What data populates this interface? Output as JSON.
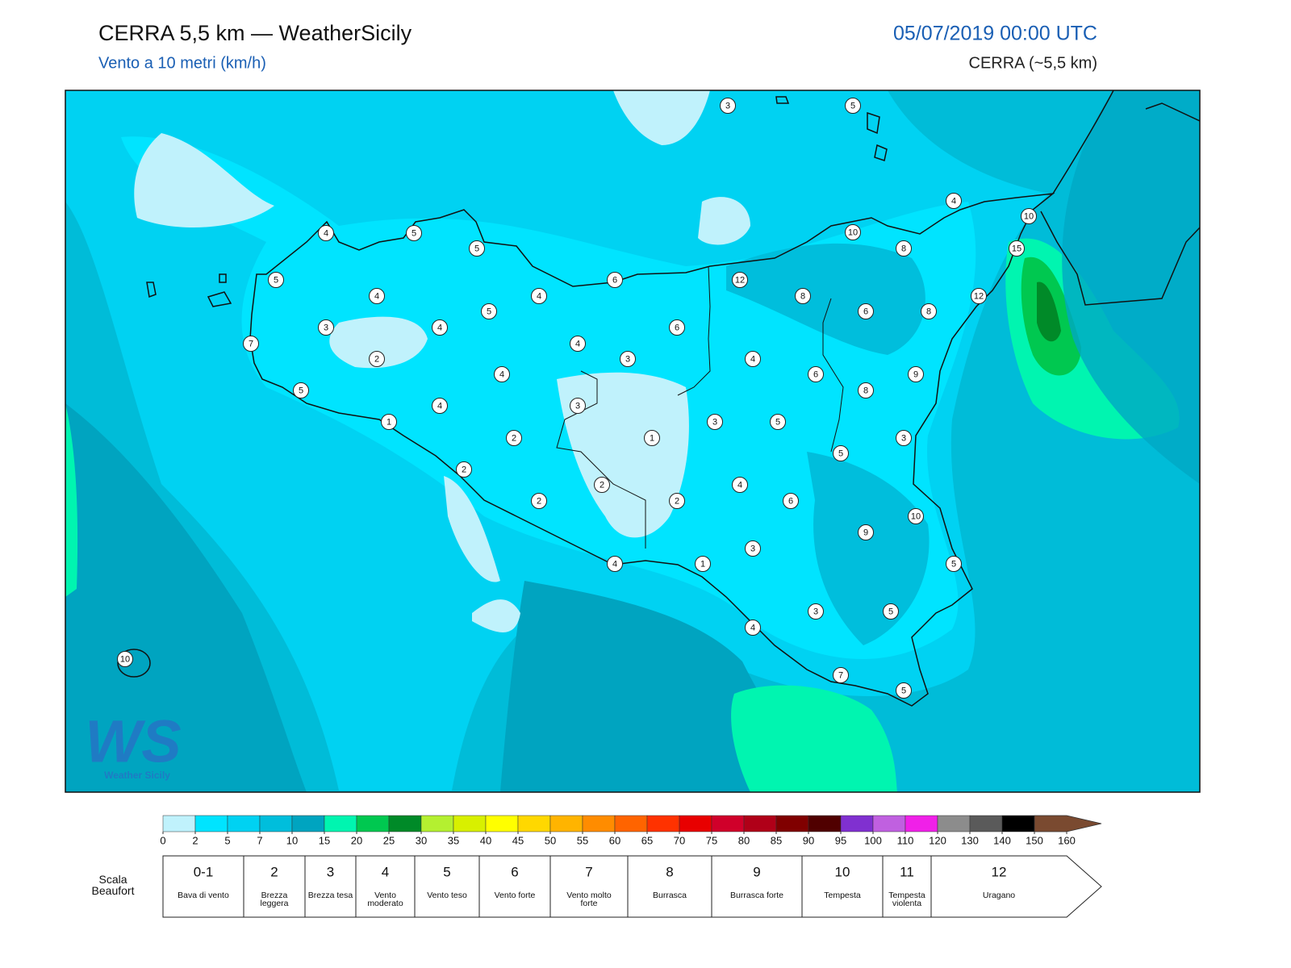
{
  "header": {
    "title": "CERRA 5,5 km — WeatherSicily",
    "subtitle": "Vento a 10 metri (km/h)",
    "datetime": "05/07/2019 00:00 UTC",
    "model": "CERRA (~5,5 km)"
  },
  "map": {
    "stations": [
      3,
      5,
      4,
      10,
      15,
      10,
      8,
      12,
      6,
      8,
      6,
      8,
      12,
      4,
      5,
      5,
      5,
      4,
      4,
      5,
      3,
      4,
      6,
      7,
      4,
      2,
      3,
      4,
      4,
      6,
      9,
      5,
      4,
      3,
      8,
      1,
      3,
      5,
      2,
      1,
      3,
      5,
      2,
      4,
      2,
      6,
      2,
      2,
      10,
      9,
      3,
      4,
      1,
      5,
      3,
      5,
      4,
      10,
      7,
      5
    ]
  },
  "logo": {
    "text": "WS",
    "name": "Weather Sicily"
  },
  "colorbar": {
    "ticks": [
      0,
      2,
      5,
      7,
      10,
      15,
      20,
      25,
      30,
      35,
      40,
      45,
      50,
      55,
      60,
      65,
      70,
      75,
      80,
      85,
      90,
      95,
      100,
      110,
      120,
      130,
      140,
      150,
      160
    ],
    "colors": [
      "#c0f2fc",
      "#00e4ff",
      "#00d2f2",
      "#00bedc",
      "#00a4c0",
      "#00f5b0",
      "#00c850",
      "#008a28",
      "#b4f030",
      "#d8f000",
      "#ffff00",
      "#ffd800",
      "#ffb400",
      "#ff8c00",
      "#ff6400",
      "#ff3200",
      "#e80000",
      "#d0002a",
      "#b00018",
      "#800000",
      "#500000",
      "#8030d0",
      "#c060e0",
      "#f020e8",
      "#8c8c8c",
      "#5a5a5a",
      "#000000",
      "#7a4a30",
      "#c8844a"
    ]
  },
  "beaufort": {
    "title": "Scala Beaufort",
    "levels": [
      {
        "force": "0-1",
        "label": "Bava di vento"
      },
      {
        "force": 2,
        "label": "Brezza leggera"
      },
      {
        "force": 3,
        "label": "Brezza tesa"
      },
      {
        "force": 4,
        "label": "Vento moderato"
      },
      {
        "force": 5,
        "label": "Vento teso"
      },
      {
        "force": 6,
        "label": "Vento forte"
      },
      {
        "force": 7,
        "label": "Vento molto forte"
      },
      {
        "force": 8,
        "label": "Burrasca"
      },
      {
        "force": 9,
        "label": "Burrasca forte"
      },
      {
        "force": 10,
        "label": "Tempesta"
      },
      {
        "force": 11,
        "label": "Tempesta violenta"
      },
      {
        "force": 12,
        "label": "Uragano"
      }
    ]
  }
}
